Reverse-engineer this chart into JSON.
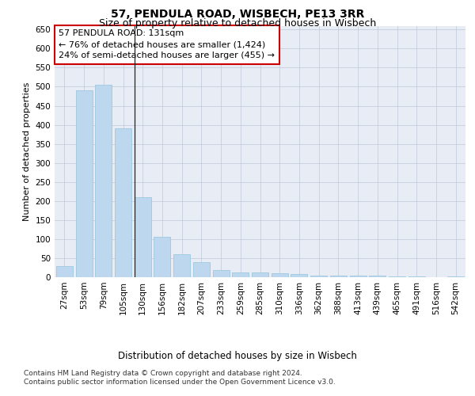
{
  "title": "57, PENDULA ROAD, WISBECH, PE13 3RR",
  "subtitle": "Size of property relative to detached houses in Wisbech",
  "xlabel": "Distribution of detached houses by size in Wisbech",
  "ylabel": "Number of detached properties",
  "categories": [
    "27sqm",
    "53sqm",
    "79sqm",
    "105sqm",
    "130sqm",
    "156sqm",
    "182sqm",
    "207sqm",
    "233sqm",
    "259sqm",
    "285sqm",
    "310sqm",
    "336sqm",
    "362sqm",
    "388sqm",
    "413sqm",
    "439sqm",
    "465sqm",
    "491sqm",
    "516sqm",
    "542sqm"
  ],
  "values": [
    30,
    490,
    505,
    390,
    210,
    107,
    60,
    40,
    18,
    13,
    12,
    10,
    8,
    5,
    5,
    4,
    5,
    3,
    2,
    0,
    3
  ],
  "bar_color": "#bdd7ee",
  "bar_edgecolor": "#9ec8e0",
  "annotation_text": "57 PENDULA ROAD: 131sqm\n← 76% of detached houses are smaller (1,424)\n24% of semi-detached houses are larger (455) →",
  "annotation_box_color": "#ffffff",
  "annotation_box_edgecolor": "#cc0000",
  "vline_x": 3.58,
  "ylim": [
    0,
    660
  ],
  "yticks": [
    0,
    50,
    100,
    150,
    200,
    250,
    300,
    350,
    400,
    450,
    500,
    550,
    600,
    650
  ],
  "background_color": "#e8edf5",
  "footer": "Contains HM Land Registry data © Crown copyright and database right 2024.\nContains public sector information licensed under the Open Government Licence v3.0.",
  "title_fontsize": 10,
  "subtitle_fontsize": 9,
  "xlabel_fontsize": 8.5,
  "ylabel_fontsize": 8,
  "tick_fontsize": 7.5,
  "annotation_fontsize": 8,
  "footer_fontsize": 6.5
}
